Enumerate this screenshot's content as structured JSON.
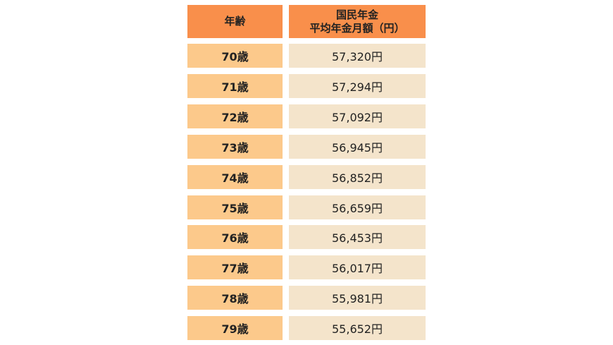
{
  "table": {
    "header": [
      "年齢",
      "国民年金\n平均年金月額（円）"
    ],
    "rows": [
      [
        "70歳",
        "57,320円"
      ],
      [
        "71歳",
        "57,294円"
      ],
      [
        "72歳",
        "57,092円"
      ],
      [
        "73歳",
        "56,945円"
      ],
      [
        "74歳",
        "56,852円"
      ],
      [
        "75歳",
        "56,659円"
      ],
      [
        "76歳",
        "56,453円"
      ],
      [
        "77歳",
        "56,017円"
      ],
      [
        "78歳",
        "55,981円"
      ],
      [
        "79歳",
        "55,652円"
      ]
    ]
  }
}
